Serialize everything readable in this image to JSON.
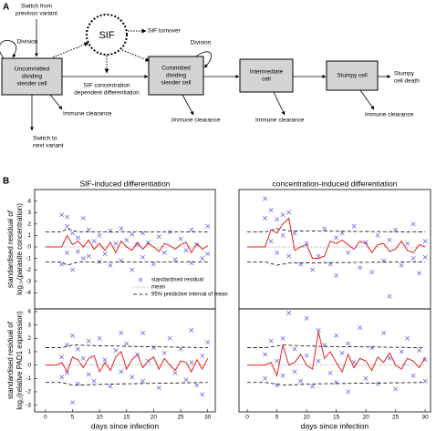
{
  "diagram": {
    "panel_labels": [
      "A",
      "B"
    ],
    "nodes": [
      {
        "lines": [
          "Uncommitted",
          "dividing",
          "slender cell"
        ]
      },
      {
        "lines": [
          "Committed",
          "dividing",
          "slender cell"
        ]
      },
      {
        "lines": [
          "Intermediate",
          "cell"
        ]
      },
      {
        "lines": [
          "Stumpy cell"
        ]
      }
    ],
    "sif": "SIF",
    "labels": {
      "switch_from": [
        "Switch from",
        "previous variant"
      ],
      "division_1": "Division",
      "division_2": "Division",
      "sif_turnover": "SIF turnover",
      "sif_differentiation": [
        "SIF concentration",
        "dependent differentiation"
      ],
      "immune_1": "Immune clearance",
      "immune_2": "Immune clearance",
      "immune_3": "Immune clearance",
      "immune_4": "Immune clearance",
      "switch_to": [
        "Switch to",
        "next variant"
      ],
      "stumpy_death": [
        "Stumpy",
        "cell death"
      ]
    }
  },
  "chart_data": [
    {
      "type": "scatter",
      "title": "SIF-induced differentiation",
      "ylabel": [
        "standardised residual of",
        "log₁₀(parasite concentration)"
      ],
      "xlim": [
        -2,
        31.4
      ],
      "ylim": [
        -5.4,
        5
      ],
      "yticks": [
        -4,
        -3,
        -2,
        -1,
        0,
        1,
        2,
        3,
        4
      ],
      "legend": "lower right",
      "series": [
        {
          "name": "standardised residual",
          "color": "#5a5ae6",
          "marker": "x",
          "x": [
            3,
            3,
            4,
            4,
            4,
            5,
            5,
            6,
            6,
            7,
            7,
            8,
            8,
            9,
            10,
            10,
            11,
            12,
            12,
            13,
            14,
            14,
            15,
            16,
            16,
            17,
            18,
            18,
            19,
            20,
            21,
            22,
            23,
            24,
            25,
            26,
            27,
            27,
            28,
            29,
            30,
            30
          ],
          "values": [
            2.8,
            -1.5,
            2.6,
            -0.5,
            1.8,
            -2,
            1.2,
            0.8,
            -0.4,
            2.5,
            -1,
            1.5,
            -0.8,
            0.5,
            -1.3,
            1,
            -0.6,
            1.4,
            -1.6,
            0.3,
            -1.2,
            1.6,
            0.6,
            -2,
            1.1,
            0.2,
            -0.9,
            1.2,
            0.4,
            -1.5,
            0.9,
            -0.5,
            1.3,
            -1.1,
            0.7,
            -0.3,
            1.5,
            -1.4,
            0.2,
            -1,
            1.8,
            -0.6
          ]
        },
        {
          "name": "mean",
          "color": "#888888",
          "style": "dotted",
          "x": [
            0,
            30
          ],
          "values": [
            0,
            0
          ]
        },
        {
          "name": "95% predictive interval of mean",
          "color": "#000000",
          "style": "dashed",
          "x": [
            0,
            3,
            4,
            6,
            30
          ],
          "values": [
            1.3,
            1.3,
            1.6,
            1.3,
            1.3
          ]
        },
        {
          "color": "#000000",
          "style": "dashed",
          "x": [
            0,
            3,
            4,
            6,
            30
          ],
          "values": [
            -1.3,
            -1.3,
            -1.6,
            -1.3,
            -1.3
          ]
        },
        {
          "color": "#e02020",
          "style": "solid",
          "x": [
            0,
            1,
            2,
            3,
            4,
            5,
            6,
            7,
            8,
            9,
            10,
            11,
            12,
            13,
            14,
            15,
            16,
            17,
            18,
            19,
            20,
            21,
            22,
            23,
            24,
            25,
            26,
            27,
            28,
            29,
            30
          ],
          "values": [
            0,
            0,
            0,
            0,
            1,
            0.2,
            0.5,
            0,
            0.6,
            -0.2,
            0.3,
            -0.3,
            0.4,
            -0.5,
            0.5,
            0,
            -0.3,
            0.4,
            -0.2,
            0.3,
            0,
            -0.4,
            0.3,
            0.1,
            -0.2,
            0.2,
            0.4,
            -0.5,
            0.3,
            -0.2,
            0.1
          ]
        }
      ]
    },
    {
      "type": "scatter",
      "title": "concentration-induced differentiation",
      "xlim": [
        -1.4,
        30.9
      ],
      "ylim": [
        -5.4,
        5
      ],
      "series": [
        {
          "color": "#5a5ae6",
          "marker": "x",
          "x": [
            3,
            3,
            4,
            4,
            5,
            5,
            6,
            6,
            7,
            7,
            8,
            9,
            10,
            11,
            12,
            13,
            14,
            15,
            15,
            16,
            17,
            18,
            19,
            20,
            21,
            22,
            23,
            24,
            24,
            25,
            26,
            27,
            28,
            28,
            29,
            30,
            30
          ],
          "values": [
            4.2,
            2.5,
            3.2,
            0.5,
            2.4,
            -0.5,
            2.8,
            1,
            3,
            -0.8,
            1.2,
            -1.5,
            0.3,
            -2,
            -0.8,
            1.6,
            -1.5,
            0.8,
            -2.5,
            1.2,
            -0.5,
            1.8,
            -1.8,
            0.4,
            -2.2,
            1,
            -1.2,
            -4.3,
            0.6,
            1.5,
            -1.6,
            0.3,
            -1,
            2,
            -2.3,
            0.5,
            -0.9
          ]
        },
        {
          "color": "#888888",
          "style": "dotted",
          "x": [
            0,
            30
          ],
          "values": [
            0,
            0
          ]
        },
        {
          "color": "#000000",
          "style": "dashed",
          "x": [
            0,
            3,
            5,
            7,
            30
          ],
          "values": [
            1.3,
            1.3,
            1.6,
            1.4,
            1.3
          ]
        },
        {
          "color": "#000000",
          "style": "dashed",
          "x": [
            0,
            3,
            5,
            7,
            30
          ],
          "values": [
            -1.3,
            -1.3,
            -1.6,
            -1.4,
            -1.3
          ]
        },
        {
          "color": "#e02020",
          "style": "solid",
          "x": [
            0,
            1,
            2,
            3,
            4,
            5,
            6,
            7,
            8,
            9,
            10,
            11,
            12,
            13,
            14,
            15,
            16,
            17,
            18,
            19,
            20,
            21,
            22,
            23,
            24,
            25,
            26,
            27,
            28,
            29,
            30
          ],
          "values": [
            0,
            0,
            0,
            0,
            1.5,
            1.2,
            2,
            2.5,
            -0.3,
            0,
            0.2,
            -1,
            -1,
            -0.8,
            0.5,
            0.3,
            0.6,
            0.2,
            -0.2,
            0.5,
            0.3,
            -0.5,
            0.2,
            0.3,
            -0.4,
            -0.2,
            0.5,
            -0.3,
            -0.5,
            0.2,
            0
          ]
        }
      ]
    },
    {
      "type": "scatter",
      "ylabel": [
        "standardised residual of",
        "log₂(relative PAD1 expression)"
      ],
      "xlabel": "days since infection",
      "xlim": [
        -2,
        31.4
      ],
      "ylim": [
        -3.5,
        4.2
      ],
      "xticks": [
        0,
        5,
        10,
        15,
        20,
        25,
        30
      ],
      "yticks": [
        -3,
        -2,
        -1,
        0,
        1,
        2,
        3,
        4
      ],
      "series": [
        {
          "color": "#5a5ae6",
          "marker": "x",
          "x": [
            3,
            3,
            4,
            4,
            5,
            5,
            6,
            6,
            7,
            8,
            8,
            9,
            10,
            11,
            12,
            13,
            14,
            14,
            15,
            16,
            17,
            18,
            18,
            19,
            20,
            21,
            22,
            23,
            24,
            25,
            26,
            27,
            27,
            28,
            29,
            29,
            30
          ],
          "values": [
            0.6,
            -0.9,
            1.5,
            -0.6,
            2.2,
            -2.8,
            1.2,
            -1.4,
            0.5,
            1.8,
            -0.7,
            -1.2,
            2,
            0.4,
            -1.6,
            1.1,
            2.4,
            -0.5,
            1.6,
            -0.9,
            0.8,
            2.4,
            -1.2,
            0.3,
            1.3,
            -1.7,
            0.9,
            2,
            -0.6,
            1.2,
            -1.1,
            2.6,
            0.2,
            -1.5,
            0.7,
            -2.2,
            1.7
          ]
        },
        {
          "color": "#888888",
          "style": "dotted",
          "x": [
            0,
            30
          ],
          "values": [
            0,
            0
          ]
        },
        {
          "color": "#000000",
          "style": "dashed",
          "x": [
            0,
            3,
            5,
            15,
            30
          ],
          "values": [
            1.3,
            1.3,
            1.5,
            1.4,
            1.3
          ]
        },
        {
          "color": "#000000",
          "style": "dashed",
          "x": [
            0,
            3,
            5,
            15,
            30
          ],
          "values": [
            -1.3,
            -1.3,
            -1.5,
            -1.4,
            -1.3
          ]
        },
        {
          "color": "#e02020",
          "style": "solid",
          "x": [
            0,
            1,
            2,
            3,
            4,
            5,
            6,
            7,
            8,
            9,
            10,
            11,
            12,
            13,
            14,
            15,
            16,
            17,
            18,
            19,
            20,
            21,
            22,
            23,
            24,
            25,
            26,
            27,
            28,
            29,
            30
          ],
          "values": [
            0,
            0,
            0,
            0.2,
            -0.5,
            0.6,
            0.4,
            -0.2,
            0.5,
            0.7,
            -0.5,
            0.2,
            -0.4,
            0.6,
            1,
            -0.3,
            0.4,
            0.8,
            -0.2,
            0.3,
            0.6,
            -0.3,
            0.5,
            0,
            -0.4,
            0.3,
            0.2,
            -0.5,
            0.4,
            -0.3,
            0.5
          ]
        }
      ]
    },
    {
      "type": "scatter",
      "xlabel": "days since infection",
      "xlim": [
        -1.4,
        30.9
      ],
      "ylim": [
        -3.5,
        4.2
      ],
      "xticks": [
        0,
        5,
        10,
        15,
        20,
        25,
        30
      ],
      "series": [
        {
          "color": "#5a5ae6",
          "marker": "x",
          "x": [
            3,
            3,
            4,
            5,
            5,
            6,
            6,
            7,
            8,
            8,
            9,
            10,
            10,
            11,
            12,
            12,
            13,
            14,
            15,
            15,
            16,
            17,
            17,
            18,
            19,
            20,
            21,
            22,
            23,
            24,
            25,
            26,
            27,
            28,
            29,
            30,
            30
          ],
          "values": [
            0.8,
            -1,
            1.8,
            -1.5,
            0.3,
            2,
            -0.8,
            3.9,
            1.2,
            -0.5,
            -1.2,
            3.5,
            0.7,
            -1.6,
            2.6,
            0.3,
            1.5,
            -0.6,
            2.2,
            -1.3,
            0.9,
            -2,
            1.6,
            0.2,
            2.8,
            -1,
            1.3,
            -1.4,
            2.4,
            0.5,
            -1.8,
            1,
            2,
            -0.8,
            1.1,
            -1.2,
            0.4
          ]
        },
        {
          "color": "#888888",
          "style": "dotted",
          "x": [
            0,
            30
          ],
          "values": [
            0,
            0
          ]
        },
        {
          "color": "#000000",
          "style": "dashed",
          "x": [
            0,
            3,
            6,
            12,
            30
          ],
          "values": [
            1.3,
            1.3,
            1.5,
            1.4,
            1.3
          ]
        },
        {
          "color": "#000000",
          "style": "dashed",
          "x": [
            0,
            3,
            6,
            12,
            30
          ],
          "values": [
            -1.3,
            -1.3,
            -1.5,
            -1.4,
            -1.3
          ]
        },
        {
          "color": "#e02020",
          "style": "solid",
          "x": [
            0,
            1,
            2,
            3,
            4,
            5,
            6,
            7,
            8,
            9,
            10,
            11,
            12,
            13,
            14,
            15,
            16,
            17,
            18,
            19,
            20,
            21,
            22,
            23,
            24,
            25,
            26,
            27,
            28,
            29,
            30
          ],
          "values": [
            0,
            0,
            0,
            0,
            0.2,
            -0.8,
            1.5,
            0,
            0.2,
            0.8,
            0,
            -0.3,
            2.5,
            0.5,
            1,
            0.2,
            -0.5,
            0.8,
            -0.2,
            0.5,
            0.3,
            -0.4,
            0.6,
            0.2,
            0.9,
            0,
            -0.3,
            0.5,
            0.3,
            -0.2,
            0.6
          ]
        }
      ]
    }
  ]
}
